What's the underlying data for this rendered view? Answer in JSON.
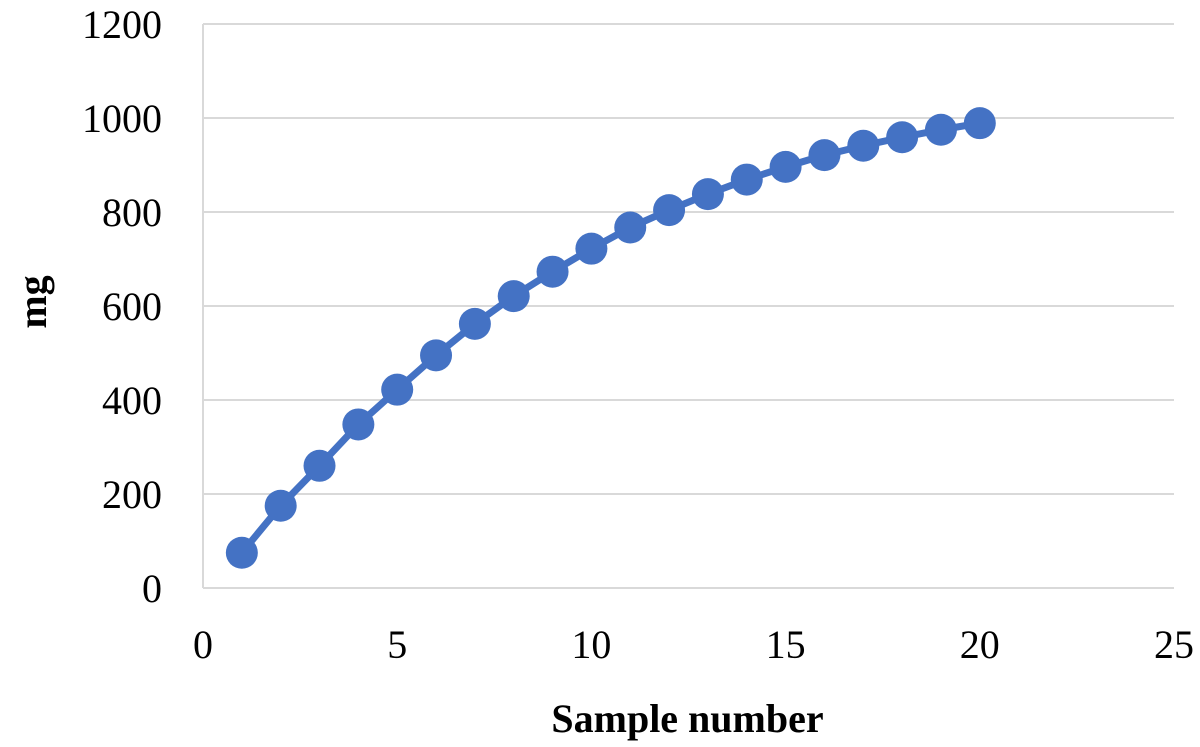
{
  "chart_data": {
    "type": "scatter",
    "title": "",
    "xlabel": "Sample number",
    "ylabel": "mg",
    "xlim": [
      0,
      25
    ],
    "ylim": [
      0,
      1200
    ],
    "x_ticks": [
      0,
      5,
      10,
      15,
      20,
      25
    ],
    "y_ticks": [
      0,
      200,
      400,
      600,
      800,
      1000,
      1200
    ],
    "x_tick_labels": [
      "0",
      "5",
      "10",
      "15",
      "20",
      "25"
    ],
    "y_tick_labels": [
      "0",
      "200",
      "400",
      "600",
      "800",
      "1000",
      "1200"
    ],
    "grid": "horizontal",
    "legend": "none",
    "series": [
      {
        "color": "#4472C4",
        "marker": "circle",
        "line": true,
        "x": [
          1,
          2,
          3,
          4,
          5,
          6,
          7,
          8,
          9,
          10,
          11,
          12,
          13,
          14,
          15,
          16,
          17,
          18,
          19,
          20
        ],
        "y": [
          75,
          175,
          260,
          348,
          422,
          495,
          562,
          621,
          673,
          722,
          767,
          804,
          838,
          869,
          896,
          921,
          941,
          959,
          975,
          989
        ]
      }
    ]
  },
  "colors": {
    "grid": "#D9D9D9",
    "axis": "#D9D9D9"
  }
}
